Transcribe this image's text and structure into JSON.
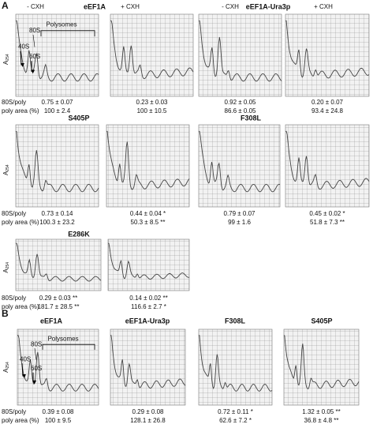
{
  "panel_a": {
    "label": "A",
    "y_axis_label": "A",
    "y_axis_subscript": "254",
    "row_labels": [
      "80S/poly",
      "poly area (%)"
    ],
    "annotations": [
      "40S",
      "60S",
      "80S",
      "Polysomes"
    ],
    "rows": [
      {
        "headers": [
          "- CXH",
          "eEF1A",
          "+ CXH",
          "- CXH",
          "eEF1A-Ura3p",
          "+ CXH"
        ],
        "profiles": [
          {
            "ratio": "0.75 ± 0.07",
            "poly_area": "100 ± 2.4"
          },
          {
            "ratio": "0.23 ± 0.03",
            "poly_area": "100 ± 10.5"
          },
          {
            "ratio": "0.92 ± 0.05",
            "poly_area": "86.6 ± 0.05"
          },
          {
            "ratio": "0.20 ± 0.07",
            "poly_area": "93.4 ± 24.8"
          }
        ]
      },
      {
        "headers": [
          "S405P",
          "F308L"
        ],
        "profiles": [
          {
            "ratio": "0.73 ± 0.14",
            "poly_area": "100.3 ± 23.2"
          },
          {
            "ratio": "0.44 ± 0.04 *",
            "poly_area": "50.3 ± 8.5 **"
          },
          {
            "ratio": "0.79 ± 0.07",
            "poly_area": "99 ± 1.6"
          },
          {
            "ratio": "0.45 ± 0.02 *",
            "poly_area": "51.8 ± 7.3 **"
          }
        ]
      },
      {
        "headers": [
          "E286K"
        ],
        "profiles": [
          {
            "ratio": "0.29 ± 0.03 **",
            "poly_area": "181.7 ± 28.5 **"
          },
          {
            "ratio": "0.14 ± 0.02 **",
            "poly_area": "116.6 ± 2.7 *"
          }
        ]
      }
    ]
  },
  "panel_b": {
    "label": "B",
    "y_axis_label": "A",
    "y_axis_subscript": "254",
    "row_labels": [
      "80S/poly",
      "poly area (%)"
    ],
    "annotations": [
      "40S",
      "60S",
      "80S",
      "Polysomes"
    ],
    "headers": [
      "eEF1A",
      "eEF1A-Ura3p",
      "F308L",
      "S405P"
    ],
    "profiles": [
      {
        "ratio": "0.39 ± 0.08",
        "poly_area": "100 ± 9.5"
      },
      {
        "ratio": "0.29 ± 0.08",
        "poly_area": "128.1 ± 26.8"
      },
      {
        "ratio": "0.72 ± 0.11 *",
        "poly_area": "62.6 ± 7.2 *"
      },
      {
        "ratio": "1.32 ± 0.05 **",
        "poly_area": "36.8 ± 4.8 **"
      }
    ]
  }
}
